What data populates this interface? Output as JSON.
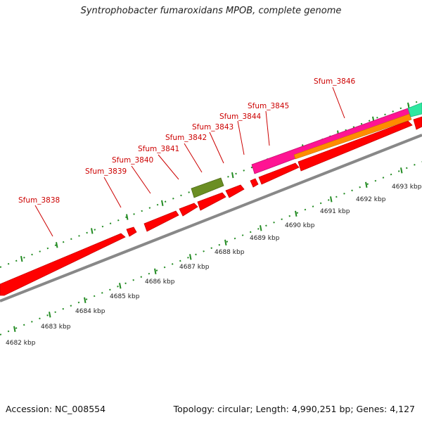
{
  "title": "Syntrophobacter fumaroxidans MPOB, complete genome",
  "footer": {
    "accession": "Accession: NC_008554",
    "stats": "Topology: circular; Length: 4,990,251 bp; Genes: 4,127"
  },
  "colors": {
    "gene": "#ff0000",
    "misc_feature": "#6b8e23",
    "magenta_track": "#ff1493",
    "orange_track": "#ff8c00",
    "teal_track": "#2ee8a0",
    "backbone": "#888888",
    "tick": "#228b22",
    "label": "#cc0000"
  },
  "gene_labels": [
    {
      "name": "Sfum_3838",
      "label": "Sfum_3838"
    },
    {
      "name": "Sfum_3839",
      "label": "Sfum_3839"
    },
    {
      "name": "Sfum_3840",
      "label": "Sfum_3840"
    },
    {
      "name": "Sfum_3841",
      "label": "Sfum_3841"
    },
    {
      "name": "Sfum_3842",
      "label": "Sfum_3842"
    },
    {
      "name": "Sfum_3843",
      "label": "Sfum_3843"
    },
    {
      "name": "Sfum_3844",
      "label": "Sfum_3844"
    },
    {
      "name": "Sfum_3845",
      "label": "Sfum_3845"
    },
    {
      "name": "Sfum_3846",
      "label": "Sfum_3846"
    }
  ],
  "kbp_labels": [
    "4682 kbp",
    "4683 kbp",
    "4684 kbp",
    "4685 kbp",
    "4686 kbp",
    "4687 kbp",
    "4688 kbp",
    "4689 kbp",
    "4690 kbp",
    "4691 kbp",
    "4692 kbp",
    "4693 kbp"
  ]
}
